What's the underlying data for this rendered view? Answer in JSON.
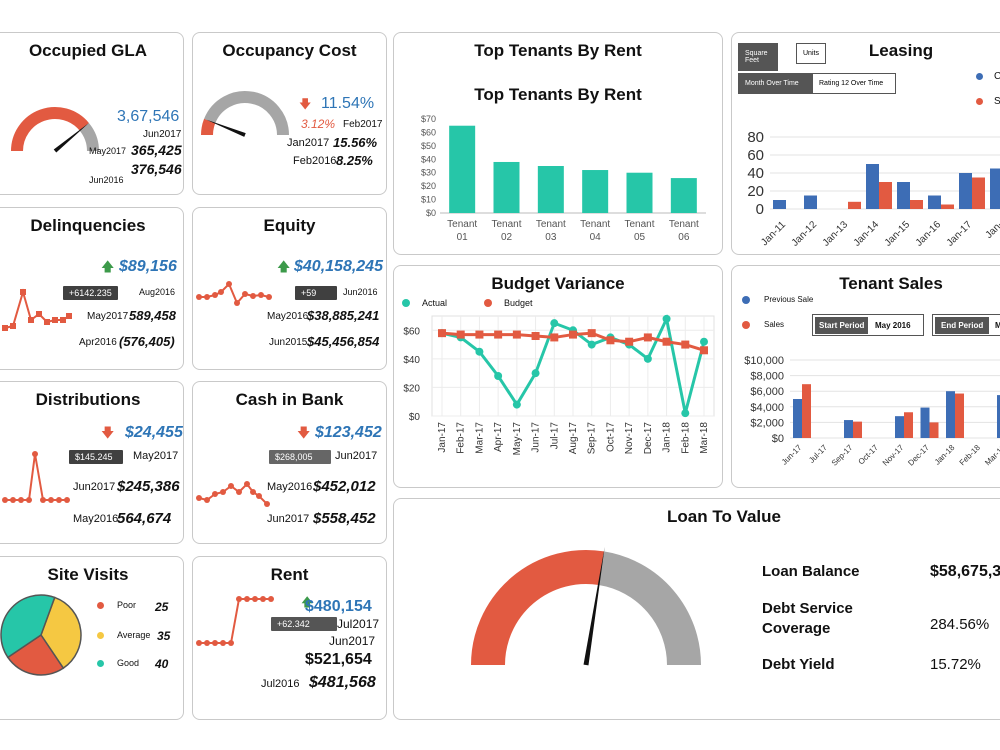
{
  "occupied_gla": {
    "title": "Occupied GLA",
    "value": "3,67,546",
    "sub": "Jun2017",
    "row1_label": "May2017",
    "row1_value": "365,425",
    "row2_label": "Jun2016",
    "row2_value": "376,546",
    "gauge_fraction": 0.78
  },
  "occupancy_cost": {
    "title": "Occupancy Cost",
    "value": "11.54%",
    "change": "3.12%",
    "change_label": "Feb2017",
    "row1_label": "Jan2017",
    "row1_value": "15.56%",
    "row2_label": "Feb2016",
    "row2_value": "8.25%",
    "gauge_fraction": 0.12
  },
  "top_tenants": {
    "title": "Top Tenants By Rent",
    "chart_title": "Top Tenants By Rent"
  },
  "leasing": {
    "title": "Leasing",
    "seg1_a": "Square Feet",
    "seg1_b": "Units",
    "seg2_a": "Month Over Time",
    "seg2_b": "Rating 12 Over Time",
    "legend_1": "C",
    "legend_2": "S"
  },
  "delinquencies": {
    "title": "Delinquencies",
    "value": "$89,156",
    "tag": "+6142.235",
    "tag_label": "Aug2016",
    "row1_label": "May2017",
    "row1_value": "589,458",
    "row2_label": "Apr2016",
    "row2_value": "(576,405)"
  },
  "equity": {
    "title": "Equity",
    "value": "$40,158,245",
    "tag": "+59",
    "tag_label": "Jun2016",
    "row1_label": "May2016",
    "row1_value": "$38,885,241",
    "row2_label": "Jun2015",
    "row2_value": "$45,456,854"
  },
  "budget_variance": {
    "title": "Budget Variance",
    "legend_actual": "Actual",
    "legend_budget": "Budget"
  },
  "tenant_sales": {
    "title": "Tenant Sales",
    "legend_prev": "Previous Sale",
    "legend_sales": "Sales",
    "start_label": "Start Period",
    "start_value": "May 2016",
    "end_label": "End Period",
    "end_value": "M"
  },
  "distributions": {
    "title": "Distributions",
    "value": "$24,455",
    "tag": "$145.245",
    "tag_label": "May2017",
    "row1_label": "Jun2017",
    "row1_value": "$245,386",
    "row2_label": "May2016",
    "row2_value": "564,674"
  },
  "cash_in_bank": {
    "title": "Cash in Bank",
    "value": "$123,452",
    "tag": "$268,005",
    "tag_label": "Jun2017",
    "row1_label": "May2016",
    "row1_value": "$452,012",
    "row2_label": "Jun2017",
    "row2_value": "$558,452"
  },
  "loan_to_value": {
    "title": "Loan To Value",
    "gauge_fraction": 0.55,
    "rows": [
      {
        "label": "Loan Balance",
        "value": "$58,675,3"
      },
      {
        "label": "Debt Service Coverage",
        "value": "284.56%"
      },
      {
        "label": "Debt Yield",
        "value": "15.72%"
      }
    ]
  },
  "site_visits": {
    "title": "Site Visits",
    "items": [
      {
        "label": "Poor",
        "value": "25",
        "color": "#e25a41"
      },
      {
        "label": "Average",
        "value": "35",
        "color": "#f5c842"
      },
      {
        "label": "Good",
        "value": "40",
        "color": "#26c6a8"
      }
    ]
  },
  "rent": {
    "title": "Rent",
    "value": "$480,154",
    "tag": "+62.342",
    "tag_label": "Jul2017",
    "sub": "Jun2017",
    "row1_value": "$521,654",
    "row2_label": "Jul2016",
    "row2_value": "$481,568"
  },
  "colors": {
    "red": "#e25a41",
    "teal": "#26c6a8",
    "blue": "#3d6db5",
    "gray": "#a6a6a6",
    "yellow": "#f5c842"
  },
  "chart_data": [
    {
      "type": "bar",
      "title": "Top Tenants By Rent",
      "categories": [
        "Tenant 01",
        "Tenant 02",
        "Tenant 03",
        "Tenant 04",
        "Tenant 05",
        "Tenant 06"
      ],
      "values": [
        65,
        38,
        35,
        32,
        30,
        26
      ],
      "yticks": [
        "$0",
        "$10",
        "$20",
        "$30",
        "$40",
        "$50",
        "$60",
        "$70"
      ],
      "ylim": [
        0,
        70
      ]
    },
    {
      "type": "bar",
      "title": "Leasing",
      "categories": [
        "Jan-11",
        "Jan-12",
        "Jan-13",
        "Jan-14",
        "Jan-15",
        "Jan-16",
        "Jan-17",
        "Jan-"
      ],
      "series": [
        {
          "values": [
            10,
            15,
            0,
            50,
            30,
            15,
            40,
            45
          ]
        },
        {
          "values": [
            0,
            0,
            8,
            30,
            10,
            5,
            35,
            30
          ]
        }
      ],
      "yticks": [
        "0",
        "20",
        "40",
        "60",
        "80"
      ],
      "ylim": [
        0,
        80
      ]
    },
    {
      "type": "line",
      "title": "Budget Variance",
      "categories": [
        "Jan-17",
        "Feb-17",
        "Mar-17",
        "Apr-17",
        "May-17",
        "Jun-17",
        "Jul-17",
        "Aug-17",
        "Sep-17",
        "Oct-17",
        "Nov-17",
        "Dec-17",
        "Jan-18",
        "Feb-18",
        "Mar-18"
      ],
      "series": [
        {
          "name": "Actual",
          "values": [
            58,
            55,
            45,
            28,
            8,
            30,
            65,
            60,
            50,
            55,
            50,
            40,
            68,
            2,
            52
          ]
        },
        {
          "name": "Budget",
          "values": [
            58,
            57,
            57,
            57,
            57,
            56,
            55,
            57,
            58,
            53,
            52,
            55,
            52,
            50,
            46
          ]
        }
      ],
      "yticks": [
        "$0",
        "$20",
        "$40",
        "$60"
      ],
      "ylim": [
        0,
        70
      ]
    },
    {
      "type": "bar",
      "title": "Tenant Sales",
      "categories": [
        "Jun-17",
        "Jul-17",
        "Sep-17",
        "Oct-17",
        "Nov-17",
        "Dec-17",
        "Jan-18",
        "Feb-18",
        "Mar-18"
      ],
      "series": [
        {
          "name": "Previous Sale",
          "values": [
            5000,
            0,
            2300,
            0,
            2800,
            3900,
            6000,
            0,
            5500
          ]
        },
        {
          "name": "Sales",
          "values": [
            6900,
            0,
            2100,
            0,
            3300,
            2000,
            5700,
            0,
            5600
          ]
        }
      ],
      "yticks": [
        "$0",
        "$2,000",
        "$4,000",
        "$6,000",
        "$8,000",
        "$10,000"
      ],
      "ylim": [
        0,
        10000
      ]
    },
    {
      "type": "pie",
      "title": "Site Visits",
      "categories": [
        "Poor",
        "Average",
        "Good"
      ],
      "values": [
        25,
        35,
        40
      ]
    }
  ]
}
